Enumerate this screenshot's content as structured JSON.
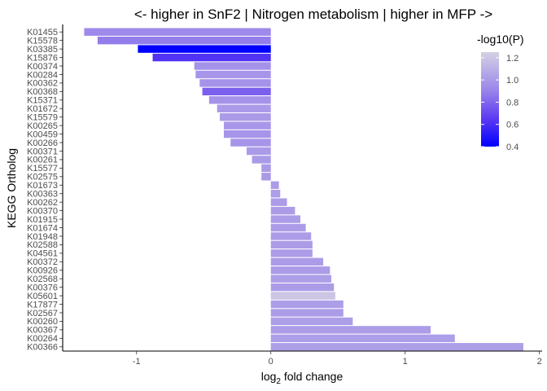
{
  "chart_data": {
    "type": "bar",
    "orientation": "horizontal",
    "title": "<- higher in SnF2 | Nitrogen metabolism | higher in MFP ->",
    "xlabel_main": "log",
    "xlabel_sub": "2",
    "xlabel_rest": " fold change",
    "ylabel": "KEGG Ortholog",
    "xlim": [
      -1.55,
      2.02
    ],
    "xticks": [
      -1,
      0,
      1,
      2
    ],
    "xtick_labels": [
      "-1",
      "0",
      "1",
      "2"
    ],
    "grid": false,
    "legend": {
      "title": "-log10(P)",
      "placement": "right",
      "range": [
        0.4,
        1.25
      ],
      "ticks": [
        0.4,
        0.6,
        0.8,
        1.0,
        1.2
      ],
      "tick_labels": [
        "0.4",
        "0.6",
        "0.8",
        "1.0",
        "1.2"
      ],
      "color_low": "#0000ff",
      "color_high": "#d6d0e3"
    },
    "categories": [
      "K01455",
      "K15578",
      "K03385",
      "K15876",
      "K00374",
      "K00284",
      "K00362",
      "K00368",
      "K15371",
      "K01672",
      "K15579",
      "K00265",
      "K00459",
      "K00266",
      "K00371",
      "K00261",
      "K15577",
      "K02575",
      "K01673",
      "K00363",
      "K00262",
      "K00370",
      "K01915",
      "K01674",
      "K01948",
      "K02588",
      "K04561",
      "K00372",
      "K00926",
      "K02568",
      "K00376",
      "K05601",
      "K17877",
      "K02567",
      "K00260",
      "K00367",
      "K00264",
      "K00366"
    ],
    "values": [
      -1.39,
      -1.29,
      -0.99,
      -0.88,
      -0.57,
      -0.56,
      -0.53,
      -0.51,
      -0.46,
      -0.4,
      -0.38,
      -0.35,
      -0.35,
      -0.3,
      -0.18,
      -0.14,
      -0.07,
      -0.07,
      0.06,
      0.07,
      0.12,
      0.18,
      0.22,
      0.26,
      0.3,
      0.31,
      0.31,
      0.39,
      0.44,
      0.45,
      0.47,
      0.48,
      0.54,
      0.54,
      0.61,
      1.19,
      1.37,
      1.88
    ],
    "neglog10p": [
      0.93,
      0.88,
      0.4,
      0.62,
      0.97,
      0.98,
      0.97,
      0.78,
      0.97,
      1.0,
      1.0,
      0.99,
      0.98,
      0.98,
      1.0,
      1.0,
      1.0,
      1.0,
      1.01,
      1.02,
      1.01,
      1.01,
      1.01,
      1.01,
      1.01,
      1.01,
      1.01,
      1.01,
      1.01,
      1.02,
      1.01,
      1.2,
      1.02,
      1.01,
      1.02,
      1.01,
      1.02,
      1.02
    ]
  }
}
